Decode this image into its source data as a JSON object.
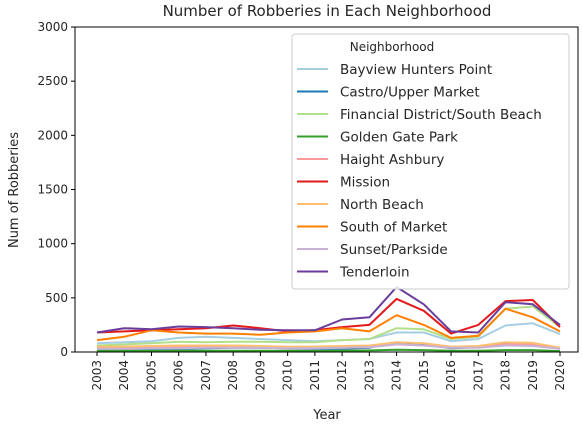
{
  "chart_data": {
    "type": "line",
    "title": "Number of Robberies in Each Neighborhood",
    "xlabel": "Year",
    "ylabel": "Num of Robberies",
    "ylim": [
      0,
      3000
    ],
    "yticks": [
      0,
      500,
      1000,
      1500,
      2000,
      2500,
      3000
    ],
    "x": [
      "2003",
      "2004",
      "2005",
      "2006",
      "2007",
      "2008",
      "2009",
      "2010",
      "2011",
      "2012",
      "2013",
      "2014",
      "2015",
      "2016",
      "2017",
      "2018",
      "2019",
      "2020"
    ],
    "grid": false,
    "legend": {
      "title": "Neighborhood",
      "placement": "top-right"
    },
    "series": [
      {
        "name": "Bayview Hunters Point",
        "color": "#a6cee3",
        "values": [
          80,
          90,
          100,
          130,
          140,
          130,
          120,
          110,
          100,
          110,
          120,
          180,
          180,
          100,
          120,
          245,
          265,
          165
        ]
      },
      {
        "name": "Castro/Upper Market",
        "color": "#1f78b4",
        "values": [
          30,
          30,
          30,
          30,
          35,
          40,
          40,
          35,
          30,
          30,
          40,
          90,
          70,
          35,
          45,
          75,
          70,
          30
        ]
      },
      {
        "name": "Financial District/South Beach",
        "color": "#b2df8a",
        "values": [
          60,
          70,
          80,
          95,
          90,
          95,
          95,
          90,
          90,
          110,
          120,
          220,
          210,
          120,
          140,
          400,
          420,
          230
        ]
      },
      {
        "name": "Golden Gate Park",
        "color": "#33a02c",
        "values": [
          10,
          12,
          10,
          12,
          12,
          12,
          12,
          12,
          10,
          12,
          15,
          20,
          18,
          12,
          12,
          18,
          18,
          8
        ]
      },
      {
        "name": "Haight Ashbury",
        "color": "#fb9a99",
        "values": [
          40,
          40,
          45,
          45,
          50,
          55,
          50,
          45,
          40,
          40,
          45,
          70,
          60,
          40,
          45,
          70,
          70,
          30
        ]
      },
      {
        "name": "Mission",
        "color": "#e31a1c",
        "values": [
          180,
          190,
          200,
          210,
          220,
          245,
          220,
          190,
          200,
          230,
          250,
          490,
          380,
          170,
          250,
          470,
          480,
          230
        ]
      },
      {
        "name": "North Beach",
        "color": "#fdbf6f",
        "values": [
          50,
          50,
          55,
          60,
          60,
          60,
          55,
          50,
          50,
          55,
          60,
          90,
          80,
          50,
          55,
          90,
          85,
          40
        ]
      },
      {
        "name": "South of Market",
        "color": "#ff7f00",
        "values": [
          110,
          140,
          200,
          180,
          170,
          170,
          160,
          180,
          190,
          220,
          190,
          340,
          250,
          130,
          150,
          400,
          320,
          190
        ]
      },
      {
        "name": "Sunset/Parkside",
        "color": "#cab2d6",
        "values": [
          30,
          30,
          35,
          35,
          40,
          40,
          40,
          35,
          35,
          40,
          45,
          70,
          60,
          40,
          40,
          60,
          55,
          30
        ]
      },
      {
        "name": "Tenderloin",
        "color": "#6a3d9a",
        "values": [
          180,
          220,
          210,
          235,
          230,
          220,
          205,
          200,
          200,
          300,
          320,
          600,
          440,
          190,
          180,
          460,
          440,
          250
        ]
      }
    ]
  }
}
